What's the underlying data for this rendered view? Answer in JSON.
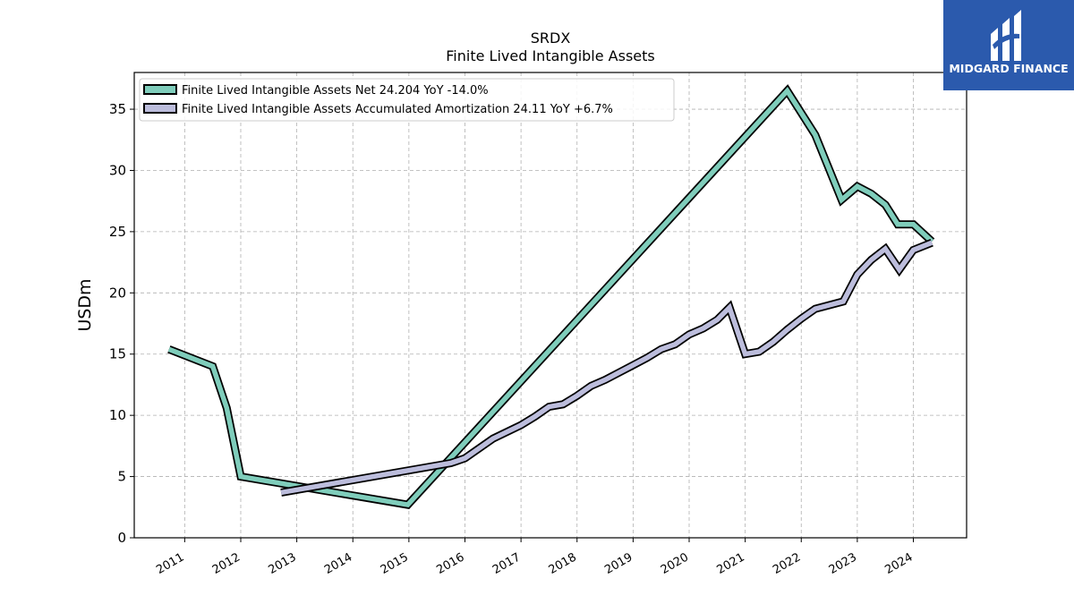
{
  "chart_data": {
    "type": "line",
    "title": "SRDX",
    "subtitle": "Finite Lived Intangible Assets",
    "xlabel": "",
    "ylabel": "USDm",
    "xlim": [
      2010.1,
      2024.95
    ],
    "ylim": [
      0,
      38
    ],
    "yticks": [
      0,
      5,
      10,
      15,
      20,
      25,
      30,
      35
    ],
    "xticks": [
      "2011",
      "2012",
      "2013",
      "2014",
      "2015",
      "2016",
      "2017",
      "2018",
      "2019",
      "2020",
      "2021",
      "2022",
      "2023",
      "2024"
    ],
    "grid": true,
    "legend_position": "top-left",
    "series": [
      {
        "name": "Finite Lived Intangible Assets Net  24.204 YoY -14.0%",
        "color": "#7fcdbb",
        "points": [
          [
            2010.72,
            15.4
          ],
          [
            2011.5,
            14.0
          ],
          [
            2011.75,
            10.6
          ],
          [
            2012.0,
            5.0
          ],
          [
            2014.98,
            2.7
          ],
          [
            2021.75,
            36.5
          ],
          [
            2022.25,
            32.9
          ],
          [
            2022.72,
            27.6
          ],
          [
            2023.0,
            28.7
          ],
          [
            2023.25,
            28.1
          ],
          [
            2023.5,
            27.2
          ],
          [
            2023.72,
            25.6
          ],
          [
            2024.0,
            25.6
          ],
          [
            2024.33,
            24.2
          ]
        ]
      },
      {
        "name": "Finite Lived Intangible Assets Accumulated Amortization  24.11 YoY +6.7%",
        "color": "#bcbddc",
        "points": [
          [
            2012.72,
            3.7
          ],
          [
            2015.75,
            6.1
          ],
          [
            2016.0,
            6.5
          ],
          [
            2016.5,
            8.1
          ],
          [
            2017.0,
            9.2
          ],
          [
            2017.25,
            9.9
          ],
          [
            2017.5,
            10.7
          ],
          [
            2017.75,
            10.9
          ],
          [
            2018.0,
            11.6
          ],
          [
            2018.25,
            12.4
          ],
          [
            2018.5,
            12.9
          ],
          [
            2018.75,
            13.5
          ],
          [
            2019.0,
            14.1
          ],
          [
            2019.25,
            14.7
          ],
          [
            2019.5,
            15.4
          ],
          [
            2019.75,
            15.8
          ],
          [
            2020.0,
            16.6
          ],
          [
            2020.25,
            17.1
          ],
          [
            2020.5,
            17.8
          ],
          [
            2020.72,
            18.8
          ],
          [
            2021.0,
            15.0
          ],
          [
            2021.25,
            15.2
          ],
          [
            2021.5,
            16.0
          ],
          [
            2021.75,
            17.0
          ],
          [
            2022.0,
            17.9
          ],
          [
            2022.25,
            18.7
          ],
          [
            2022.5,
            19.0
          ],
          [
            2022.75,
            19.3
          ],
          [
            2023.0,
            21.5
          ],
          [
            2023.25,
            22.7
          ],
          [
            2023.5,
            23.6
          ],
          [
            2023.75,
            21.9
          ],
          [
            2024.0,
            23.5
          ],
          [
            2024.33,
            24.1
          ]
        ]
      }
    ]
  },
  "logo": {
    "text": "MIDGARD FINANCE",
    "bg_color": "#2b5aad"
  }
}
